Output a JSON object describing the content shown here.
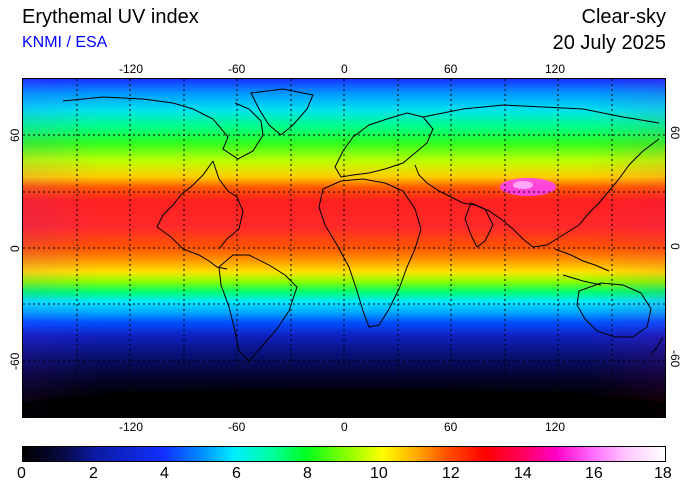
{
  "header": {
    "title": "Erythemal UV index",
    "source": "KNMI / ESA",
    "mode": "Clear-sky",
    "date": "20 July 2025"
  },
  "map": {
    "lon_ticks": [
      "-120",
      "-60",
      "0",
      "60",
      "120"
    ],
    "lat_ticks": [
      "60",
      "0",
      "-60"
    ],
    "projection": "equirectangular",
    "grid": "dashed, every 30 degrees",
    "lon_range": [
      -180,
      180
    ],
    "lat_range": [
      -90,
      90
    ]
  },
  "colorbar": {
    "labels": [
      "0",
      "2",
      "4",
      "6",
      "8",
      "10",
      "12",
      "14",
      "16",
      "18"
    ],
    "range": [
      0,
      18
    ]
  },
  "colors": {
    "source_text": "#0000ff",
    "grid": "#000000"
  }
}
